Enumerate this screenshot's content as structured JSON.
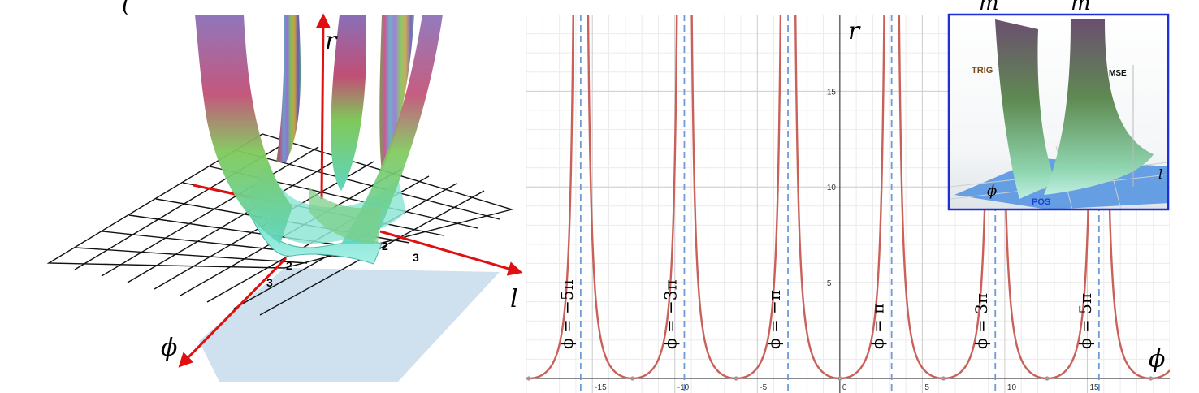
{
  "left_panel": {
    "axis_r": "r",
    "axis_l": "l",
    "axis_phi": "ϕ",
    "ticks": {
      "l_2": "2",
      "l_3": "3",
      "phi_2": "2",
      "phi_3": "3"
    },
    "top_text": "("
  },
  "chart_data": {
    "type": "line",
    "xlim": [
      -19,
      20
    ],
    "ylim": [
      0,
      19
    ],
    "x_ticks": [
      -15,
      -10,
      -5,
      0,
      5,
      10,
      15
    ],
    "y_ticks": [
      5,
      10,
      15
    ],
    "x_tick_labels": [
      "-15",
      "-10",
      "-5",
      "0",
      "5",
      "10",
      "15"
    ],
    "y_tick_labels": [
      "5",
      "10",
      "15"
    ],
    "x_axis_label": "ϕ",
    "y_axis_label": "r",
    "grid": true,
    "asymptotes": [
      {
        "x": -15.708,
        "label": "ϕ = −5π"
      },
      {
        "x": -9.425,
        "label": "ϕ = −3π"
      },
      {
        "x": -3.1416,
        "label": "ϕ = −π"
      },
      {
        "x": 3.1416,
        "label": "ϕ = π"
      },
      {
        "x": 9.425,
        "label": "ϕ = 3π"
      },
      {
        "x": 15.708,
        "label": "ϕ = 5π"
      }
    ],
    "minima_x": [
      -18.85,
      -12.566,
      -6.283,
      0,
      6.283,
      12.566,
      18.85
    ],
    "series": [
      {
        "color": "#c9615a"
      }
    ]
  },
  "inset": {
    "label_trig": "TRIG",
    "label_mse": "MSE",
    "label_pos": "POS",
    "axis_phi": "ϕ",
    "axis_l": "l",
    "border_color": "#1f2fd8"
  },
  "top_right_text": [
    "m",
    "m"
  ]
}
